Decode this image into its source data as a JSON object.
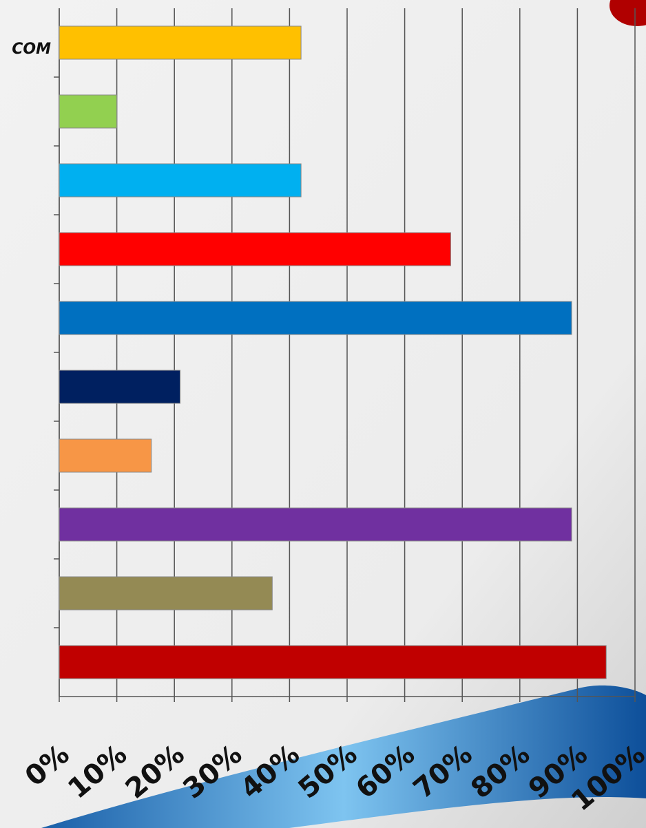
{
  "chart_data": {
    "type": "hbar",
    "categories": [
      "COM",
      null,
      null,
      null,
      null,
      null,
      null,
      null,
      null,
      null
    ],
    "values": [
      42,
      10,
      42,
      68,
      89,
      21,
      16,
      89,
      37,
      95
    ],
    "colors": [
      "#ffc000",
      "#92d050",
      "#00b0f0",
      "#ff0000",
      "#0070c0",
      "#002060",
      "#f79646",
      "#7030a0",
      "#948a54",
      "#c00000"
    ],
    "xlim": [
      0,
      100
    ],
    "xticks": [
      {
        "value": 0,
        "label": "0%"
      },
      {
        "value": 10,
        "label": "10%"
      },
      {
        "value": 20,
        "label": "20%"
      },
      {
        "value": 30,
        "label": "30%"
      },
      {
        "value": 40,
        "label": "40%"
      },
      {
        "value": 50,
        "label": "50%"
      },
      {
        "value": 60,
        "label": "60%"
      },
      {
        "value": 70,
        "label": "70%"
      },
      {
        "value": 80,
        "label": "80%"
      },
      {
        "value": 90,
        "label": "90%"
      },
      {
        "value": 100,
        "label": "100%"
      }
    ],
    "grid": true
  }
}
